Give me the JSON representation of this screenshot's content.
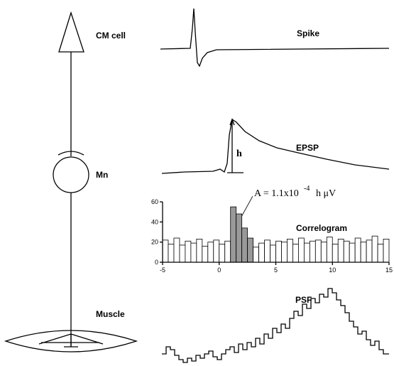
{
  "labels": {
    "cm_cell": "CM cell",
    "mn": "Mn",
    "muscle": "Muscle",
    "spike": "Spike",
    "epsp": "EPSP",
    "h": "h",
    "correlogram": "Correlogram",
    "psf": "PSF"
  },
  "annotation": {
    "base": "A = 1.1x10",
    "exponent": "-4",
    "tail": "h μV"
  },
  "chart_data": {
    "type": "histogram",
    "bins": [
      -5,
      -4.5,
      -4,
      -3.5,
      -3,
      -2.5,
      -2,
      -1.5,
      -1,
      -0.5,
      0,
      0.5,
      1,
      1.5,
      2,
      2.5,
      3,
      3.5,
      4,
      4.5,
      5,
      5.5,
      6,
      6.5,
      7,
      7.5,
      8,
      8.5,
      9,
      9.5,
      10,
      10.5,
      11,
      11.5,
      12,
      12.5,
      13,
      13.5,
      14,
      14.5,
      15
    ],
    "values": [
      22,
      18,
      24,
      17,
      21,
      19,
      23,
      16,
      20,
      22,
      18,
      21,
      55,
      48,
      34,
      24,
      15,
      19,
      22,
      17,
      21,
      20,
      23,
      18,
      24,
      19,
      21,
      22,
      20,
      25,
      18,
      23,
      21,
      19,
      24,
      20,
      22,
      26,
      18,
      23
    ],
    "colors": [
      "#fff",
      "#fff",
      "#fff",
      "#fff",
      "#fff",
      "#fff",
      "#fff",
      "#fff",
      "#fff",
      "#fff",
      "#fff",
      "#fff",
      "#999",
      "#999",
      "#999",
      "#999",
      "#fff",
      "#fff",
      "#fff",
      "#fff",
      "#fff",
      "#fff",
      "#fff",
      "#fff",
      "#fff",
      "#fff",
      "#fff",
      "#fff",
      "#fff",
      "#fff",
      "#fff",
      "#fff",
      "#fff",
      "#fff",
      "#fff",
      "#fff",
      "#fff",
      "#fff",
      "#fff",
      "#fff"
    ],
    "xlim": [
      -5,
      15
    ],
    "ylim": [
      0,
      60
    ],
    "xticks": [
      -5,
      0,
      5,
      10,
      15
    ],
    "yticks": [
      0,
      20,
      40,
      60
    ]
  }
}
